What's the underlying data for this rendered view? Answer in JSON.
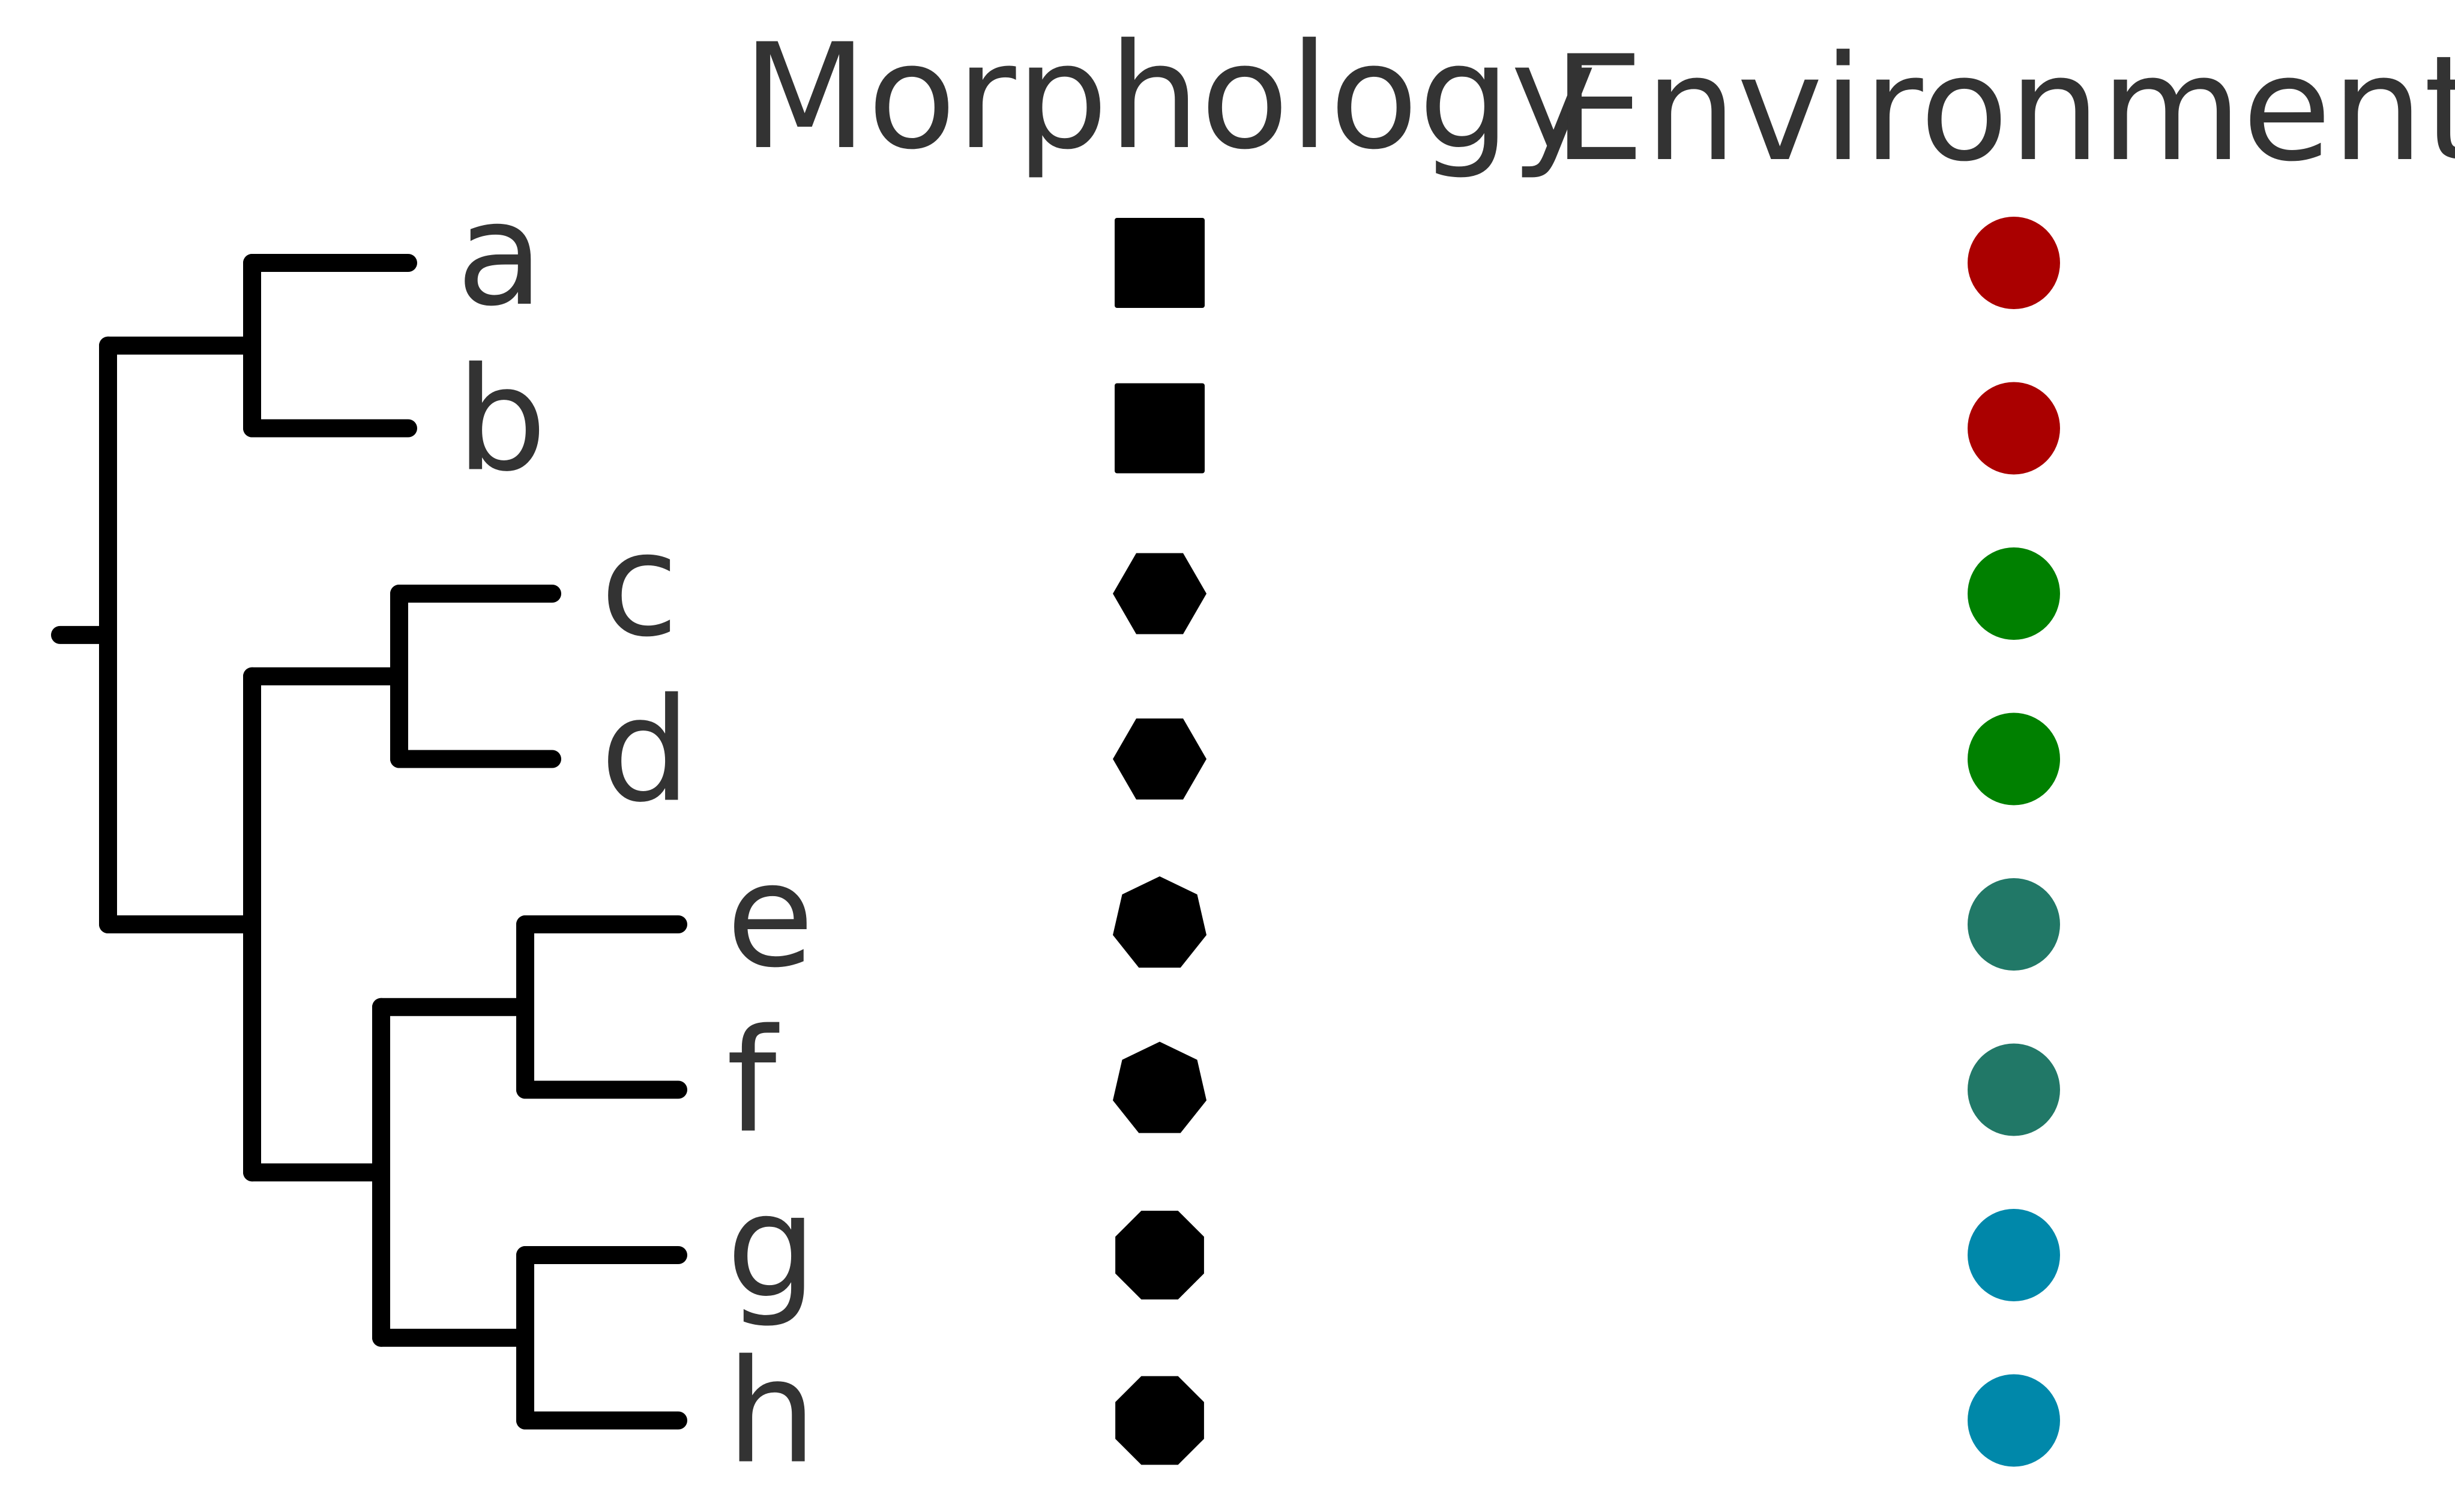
{
  "headers": {
    "morphology": "Morphology",
    "environment": "Environment"
  },
  "taxa": [
    {
      "label": "a",
      "morphology_shape": "square",
      "environment_color": "#aa0000"
    },
    {
      "label": "b",
      "morphology_shape": "square",
      "environment_color": "#aa0000"
    },
    {
      "label": "c",
      "morphology_shape": "hexagon",
      "environment_color": "#008000"
    },
    {
      "label": "d",
      "morphology_shape": "hexagon",
      "environment_color": "#008000"
    },
    {
      "label": "e",
      "morphology_shape": "heptagon",
      "environment_color": "#217867"
    },
    {
      "label": "f",
      "morphology_shape": "heptagon",
      "environment_color": "#217867"
    },
    {
      "label": "g",
      "morphology_shape": "octagon",
      "environment_color": "#0088aa"
    },
    {
      "label": "h",
      "morphology_shape": "octagon",
      "environment_color": "#0088aa"
    }
  ],
  "tree": {
    "line_color": "#000000",
    "topology": "((a,b),((c,d),((e,f),(g,h))))"
  }
}
